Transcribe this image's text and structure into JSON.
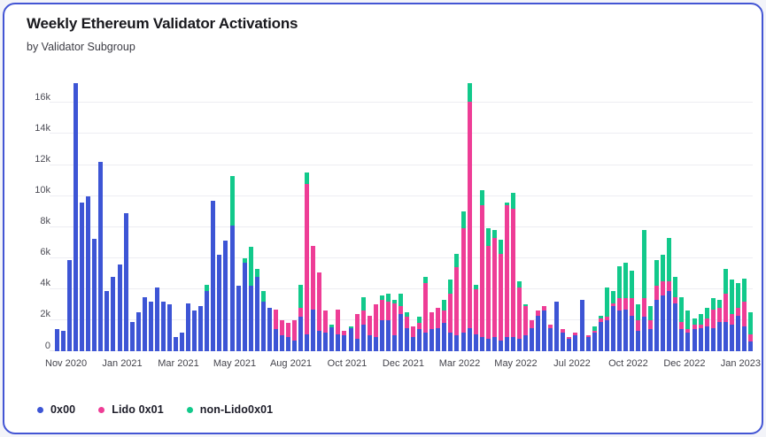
{
  "card": {
    "title": "Weekly Ethereum Validator Activations",
    "subtitle": "by Validator Subgroup"
  },
  "legend": {
    "items": [
      {
        "label": "0x00",
        "color": "#3d55d5"
      },
      {
        "label": "Lido 0x01",
        "color": "#ee3d96"
      },
      {
        "label": "non-Lido0x01",
        "color": "#12c98b"
      }
    ]
  },
  "chart_data": {
    "type": "bar",
    "stacked": true,
    "title": "Weekly Ethereum Validator Activations",
    "subtitle": "by Validator Subgroup",
    "xlabel": "week",
    "ylabel": "validator activations",
    "ylim": [
      0,
      17500
    ],
    "grid": true,
    "legend_position": "bottom-left",
    "y_tick_values": [
      0,
      2000,
      4000,
      6000,
      8000,
      10000,
      12000,
      14000,
      16000
    ],
    "y_tick_labels": [
      "0",
      "2k",
      "4k",
      "6k",
      "8k",
      "10k",
      "12k",
      "14k",
      "16k"
    ],
    "x_tick_labels": [
      "Nov 2020",
      "Jan 2021",
      "Mar 2021",
      "May 2021",
      "Aug 2021",
      "Oct 2021",
      "Dec 2021",
      "Mar 2022",
      "May 2022",
      "Jul 2022",
      "Oct 2022",
      "Dec 2022",
      "Jan 2023"
    ],
    "x_tick_indices": [
      1,
      10,
      19,
      28,
      37,
      46,
      55,
      64,
      73,
      82,
      91,
      100,
      109
    ],
    "series_names": [
      "0x00",
      "Lido 0x01",
      "non-Lido0x01"
    ],
    "series_colors": [
      "#3d55d5",
      "#ee3d96",
      "#12c98b"
    ],
    "weeks": [
      [
        1450,
        0,
        0
      ],
      [
        1300,
        0,
        0
      ],
      [
        5900,
        0,
        0
      ],
      [
        17300,
        0,
        0
      ],
      [
        9600,
        0,
        0
      ],
      [
        10000,
        0,
        0
      ],
      [
        7250,
        0,
        0
      ],
      [
        12200,
        0,
        0
      ],
      [
        3900,
        0,
        0
      ],
      [
        4800,
        0,
        0
      ],
      [
        5600,
        0,
        0
      ],
      [
        8900,
        0,
        0
      ],
      [
        1900,
        0,
        0
      ],
      [
        2500,
        0,
        0
      ],
      [
        3500,
        0,
        0
      ],
      [
        3200,
        0,
        0
      ],
      [
        4100,
        0,
        0
      ],
      [
        3200,
        0,
        0
      ],
      [
        3000,
        0,
        0
      ],
      [
        900,
        0,
        0
      ],
      [
        1200,
        0,
        0
      ],
      [
        3100,
        0,
        0
      ],
      [
        2600,
        0,
        0
      ],
      [
        2900,
        0,
        0
      ],
      [
        3900,
        0,
        400
      ],
      [
        9700,
        0,
        0
      ],
      [
        6200,
        0,
        0
      ],
      [
        7100,
        0,
        0
      ],
      [
        8100,
        0,
        3200
      ],
      [
        4200,
        0,
        0
      ],
      [
        5700,
        0,
        300
      ],
      [
        4200,
        0,
        2500
      ],
      [
        4800,
        0,
        500
      ],
      [
        3200,
        0,
        700
      ],
      [
        2800,
        0,
        0
      ],
      [
        1400,
        1300,
        0
      ],
      [
        1000,
        1000,
        0
      ],
      [
        900,
        900,
        0
      ],
      [
        700,
        1300,
        0
      ],
      [
        2200,
        600,
        1500
      ],
      [
        1100,
        9700,
        700
      ],
      [
        2700,
        4100,
        0
      ],
      [
        1300,
        3800,
        0
      ],
      [
        1200,
        1400,
        0
      ],
      [
        1550,
        0,
        150
      ],
      [
        1100,
        1600,
        0
      ],
      [
        1000,
        300,
        0
      ],
      [
        1500,
        0,
        100
      ],
      [
        800,
        1600,
        0
      ],
      [
        1700,
        900,
        900
      ],
      [
        1000,
        1300,
        0
      ],
      [
        900,
        2100,
        0
      ],
      [
        2000,
        1300,
        300
      ],
      [
        2000,
        1200,
        500
      ],
      [
        1000,
        2100,
        200
      ],
      [
        2400,
        500,
        800
      ],
      [
        1500,
        700,
        300
      ],
      [
        900,
        700,
        0
      ],
      [
        1400,
        400,
        400
      ],
      [
        1200,
        3200,
        400
      ],
      [
        1400,
        1100,
        0
      ],
      [
        1500,
        1300,
        0
      ],
      [
        1800,
        800,
        700
      ],
      [
        1200,
        2500,
        900
      ],
      [
        1000,
        4400,
        900
      ],
      [
        1200,
        6700,
        1100
      ],
      [
        1500,
        14600,
        1200
      ],
      [
        1100,
        2900,
        300
      ],
      [
        900,
        8500,
        1000
      ],
      [
        800,
        6000,
        1100
      ],
      [
        900,
        6400,
        500
      ],
      [
        700,
        5600,
        900
      ],
      [
        900,
        8500,
        200
      ],
      [
        900,
        8300,
        1000
      ],
      [
        800,
        3300,
        400
      ],
      [
        1000,
        1900,
        100
      ],
      [
        1500,
        500,
        0
      ],
      [
        2300,
        300,
        0
      ],
      [
        2600,
        300,
        0
      ],
      [
        1500,
        200,
        0
      ],
      [
        3200,
        0,
        0
      ],
      [
        1200,
        200,
        0
      ],
      [
        800,
        100,
        0
      ],
      [
        1000,
        200,
        0
      ],
      [
        3300,
        0,
        0
      ],
      [
        900,
        100,
        0
      ],
      [
        1200,
        100,
        300
      ],
      [
        1900,
        200,
        200
      ],
      [
        2000,
        200,
        1900
      ],
      [
        2900,
        200,
        800
      ],
      [
        2600,
        800,
        2100
      ],
      [
        2700,
        700,
        2300
      ],
      [
        2300,
        1100,
        1800
      ],
      [
        1300,
        700,
        1000
      ],
      [
        2200,
        1200,
        4400
      ],
      [
        1400,
        600,
        900
      ],
      [
        3300,
        900,
        1700
      ],
      [
        3600,
        900,
        1700
      ],
      [
        3900,
        600,
        2800
      ],
      [
        3100,
        400,
        1300
      ],
      [
        1400,
        500,
        1600
      ],
      [
        1200,
        200,
        1200
      ],
      [
        1400,
        300,
        400
      ],
      [
        1500,
        200,
        700
      ],
      [
        1600,
        500,
        700
      ],
      [
        1500,
        1200,
        700
      ],
      [
        1900,
        900,
        500
      ],
      [
        1900,
        1800,
        1600
      ],
      [
        1700,
        700,
        2200
      ],
      [
        2300,
        500,
        1600
      ],
      [
        1600,
        1600,
        1500
      ],
      [
        600,
        500,
        1400
      ]
    ]
  }
}
